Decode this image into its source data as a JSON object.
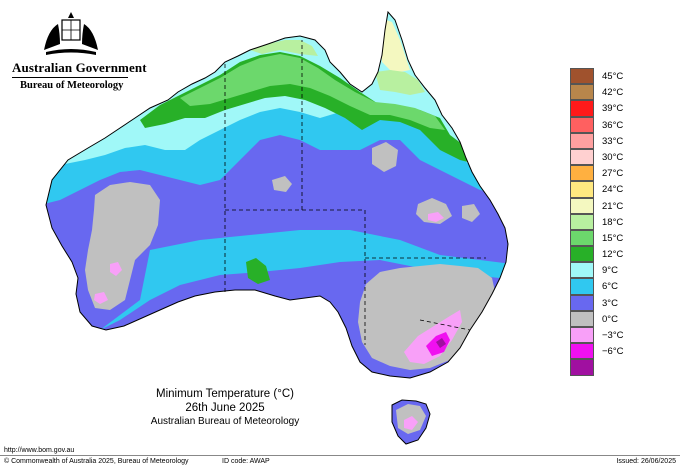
{
  "header": {
    "government": "Australian Government",
    "bureau": "Bureau of Meteorology"
  },
  "map": {
    "title": "Minimum Temperature (°C)",
    "date": "26th June 2025",
    "organisation": "Australian Bureau of Meteorology"
  },
  "legend": [
    {
      "label": "45°C",
      "color": "#a0522d"
    },
    {
      "label": "42°C",
      "color": "#b8864b"
    },
    {
      "label": "39°C",
      "color": "#ff1a1a"
    },
    {
      "label": "36°C",
      "color": "#ff6060"
    },
    {
      "label": "33°C",
      "color": "#ffa0a0"
    },
    {
      "label": "30°C",
      "color": "#ffd0d0"
    },
    {
      "label": "27°C",
      "color": "#ffb040"
    },
    {
      "label": "24°C",
      "color": "#ffe880"
    },
    {
      "label": "21°C",
      "color": "#f4f8c0"
    },
    {
      "label": "18°C",
      "color": "#b8f0a0"
    },
    {
      "label": "15°C",
      "color": "#6cd86c"
    },
    {
      "label": "12°C",
      "color": "#28b028"
    },
    {
      "label": "9°C",
      "color": "#a0f8f8"
    },
    {
      "label": "6°C",
      "color": "#30c8f0"
    },
    {
      "label": "3°C",
      "color": "#6868f0"
    },
    {
      "label": "0°C",
      "color": "#c0c0c0"
    },
    {
      "label": "−3°C",
      "color": "#f8a0f8"
    },
    {
      "label": "−6°C",
      "color": "#f010f0"
    },
    {
      "label": "",
      "color": "#a010a0"
    }
  ],
  "footer": {
    "url": "http://www.bom.gov.au",
    "copyright": "© Commonwealth of Australia 2025, Bureau of Meteorology",
    "id_code": "ID code: AWAP",
    "issued": "Issued: 26/06/2025"
  }
}
